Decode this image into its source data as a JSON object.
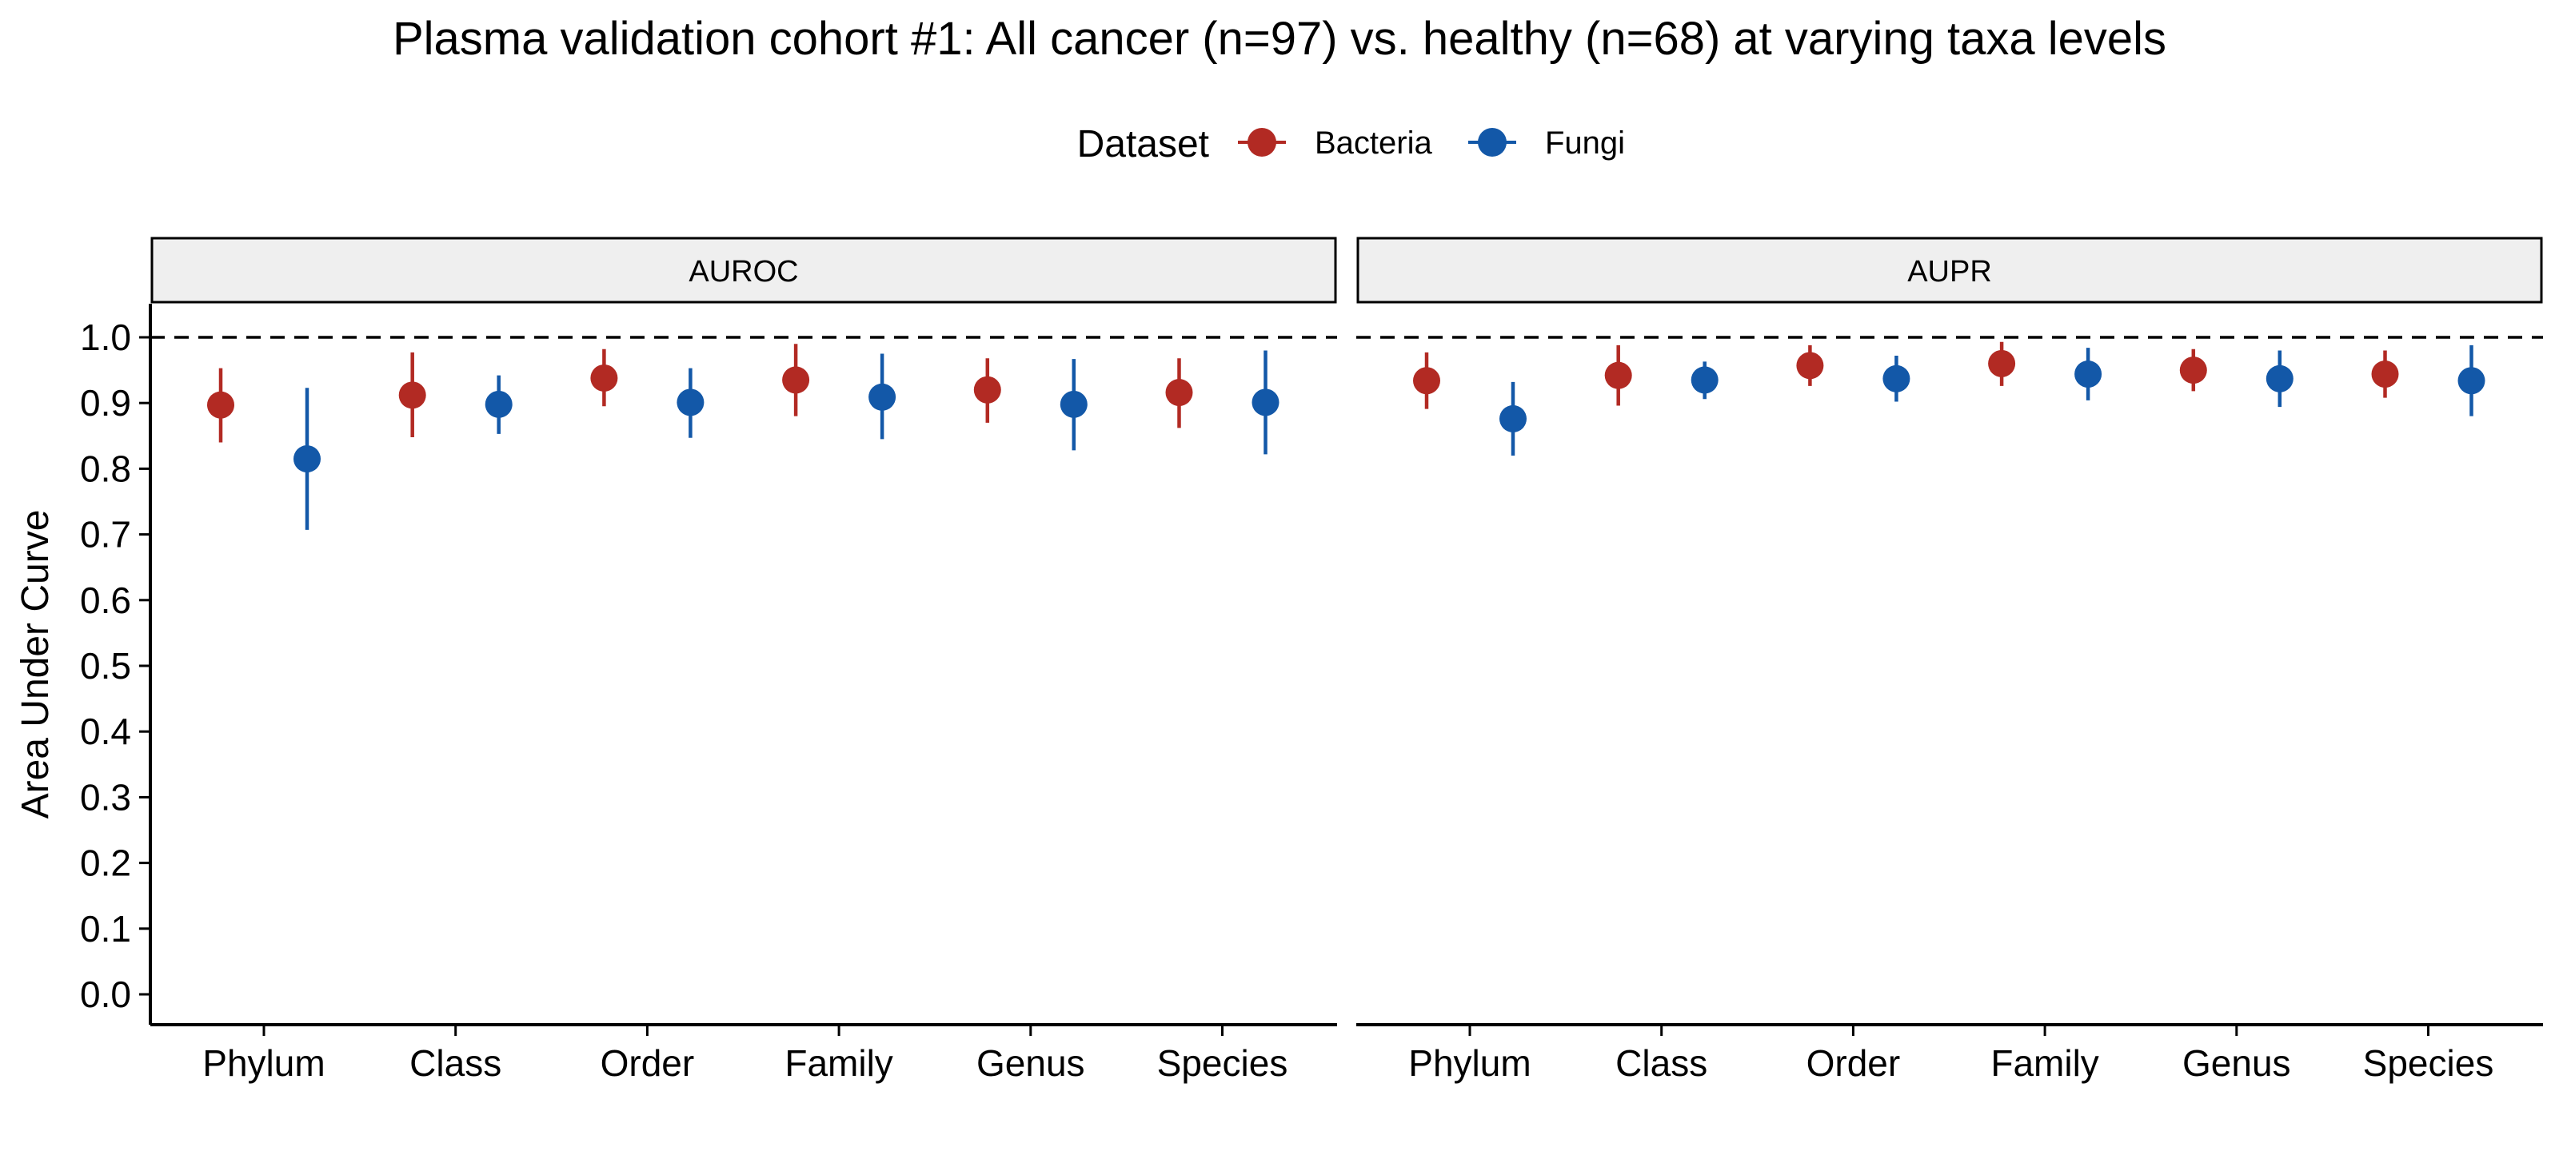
{
  "chart_data": {
    "type": "scatter",
    "title": "Plasma validation cohort #1: All cancer (n=97) vs. healthy (n=68) at varying taxa levels",
    "xlabel": "",
    "ylabel": "Area Under Curve",
    "ylim": [
      0,
      1.0
    ],
    "yticks": [
      "0.0",
      "0.1",
      "0.2",
      "0.3",
      "0.4",
      "0.5",
      "0.6",
      "0.7",
      "0.8",
      "0.9",
      "1.0"
    ],
    "reference_line": 1.0,
    "categories": [
      "Phylum",
      "Class",
      "Order",
      "Family",
      "Genus",
      "Species"
    ],
    "legend": {
      "title": "Dataset",
      "placement": "top",
      "entries": [
        "Bacteria",
        "Fungi"
      ]
    },
    "colors": {
      "Bacteria": "#B22A23",
      "Fungi": "#1358A8"
    },
    "panels": [
      {
        "name": "AUROC",
        "series": [
          {
            "name": "Bacteria",
            "values": [
              0.897,
              0.912,
              0.938,
              0.935,
              0.92,
              0.916
            ],
            "lower": [
              0.84,
              0.848,
              0.895,
              0.88,
              0.87,
              0.862
            ],
            "upper": [
              0.953,
              0.977,
              0.982,
              0.99,
              0.968,
              0.968
            ]
          },
          {
            "name": "Fungi",
            "values": [
              0.815,
              0.898,
              0.901,
              0.909,
              0.898,
              0.901
            ],
            "lower": [
              0.707,
              0.853,
              0.847,
              0.845,
              0.828,
              0.822
            ],
            "upper": [
              0.923,
              0.942,
              0.953,
              0.975,
              0.967,
              0.98
            ]
          }
        ]
      },
      {
        "name": "AUPR",
        "series": [
          {
            "name": "Bacteria",
            "values": [
              0.934,
              0.942,
              0.957,
              0.96,
              0.95,
              0.944
            ],
            "lower": [
              0.891,
              0.896,
              0.926,
              0.926,
              0.918,
              0.908
            ],
            "upper": [
              0.977,
              0.988,
              0.988,
              0.993,
              0.982,
              0.98
            ]
          },
          {
            "name": "Fungi",
            "values": [
              0.876,
              0.935,
              0.937,
              0.944,
              0.937,
              0.934
            ],
            "lower": [
              0.82,
              0.906,
              0.902,
              0.904,
              0.894,
              0.88
            ],
            "upper": [
              0.932,
              0.963,
              0.972,
              0.984,
              0.98,
              0.988
            ]
          }
        ]
      }
    ]
  }
}
